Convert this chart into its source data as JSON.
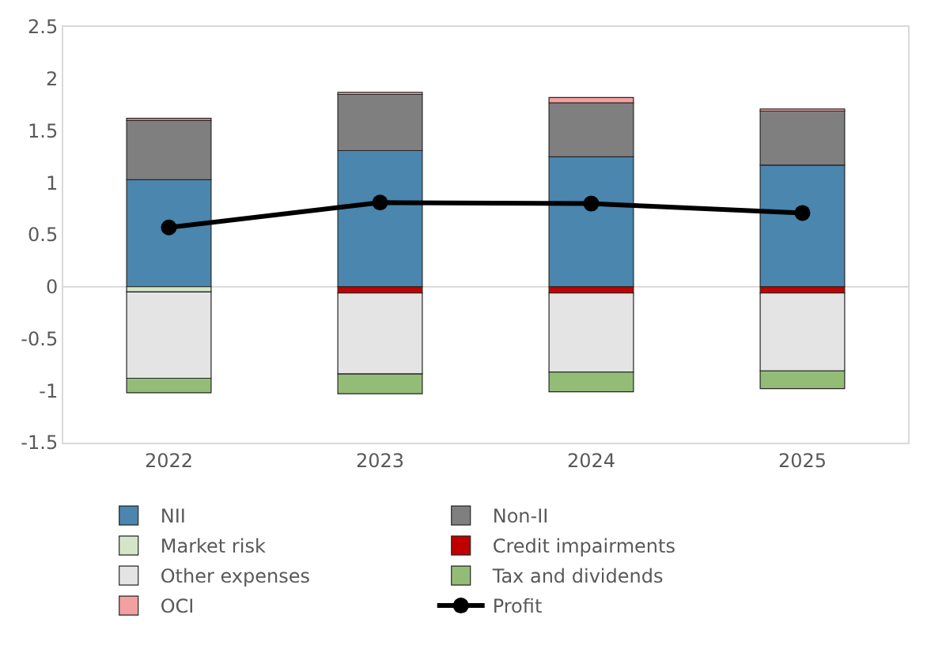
{
  "chart_data": {
    "type": "bar",
    "stacked": true,
    "categories": [
      "2022",
      "2023",
      "2024",
      "2025"
    ],
    "series": [
      {
        "name": "NII",
        "color": "#4a86ae",
        "values": [
          1.03,
          1.31,
          1.25,
          1.17
        ]
      },
      {
        "name": "Non-II",
        "color": "#7f7f7f",
        "values": [
          0.57,
          0.54,
          0.52,
          0.52
        ]
      },
      {
        "name": "Market risk",
        "color": "#d5e6c8",
        "values": [
          -0.05,
          null,
          null,
          null
        ]
      },
      {
        "name": "Credit impairments",
        "color": "#c00000",
        "values": [
          null,
          -0.06,
          -0.06,
          -0.06
        ]
      },
      {
        "name": "Other expenses",
        "color": "#e4e4e4",
        "values": [
          -0.83,
          -0.78,
          -0.76,
          -0.75
        ]
      },
      {
        "name": "Tax and dividends",
        "color": "#93bd77",
        "values": [
          -0.14,
          -0.19,
          -0.19,
          -0.17
        ]
      },
      {
        "name": "OCI",
        "color": "#f2a0a0",
        "values": [
          0.02,
          0.02,
          0.05,
          0.02
        ]
      },
      {
        "name": "Profit",
        "type": "line",
        "color": "#000000",
        "marker": "circle",
        "values": [
          0.57,
          0.81,
          0.8,
          0.71
        ]
      }
    ],
    "ylim": [
      -1.5,
      2.5
    ],
    "yticks": [
      -1.5,
      -1,
      -0.5,
      0,
      0.5,
      1,
      1.5,
      2,
      2.5
    ],
    "grid": false,
    "legend": "bottom",
    "ref_lines": [
      {
        "axis": "y",
        "value": 0,
        "color": "#d9d9d9"
      }
    ]
  }
}
